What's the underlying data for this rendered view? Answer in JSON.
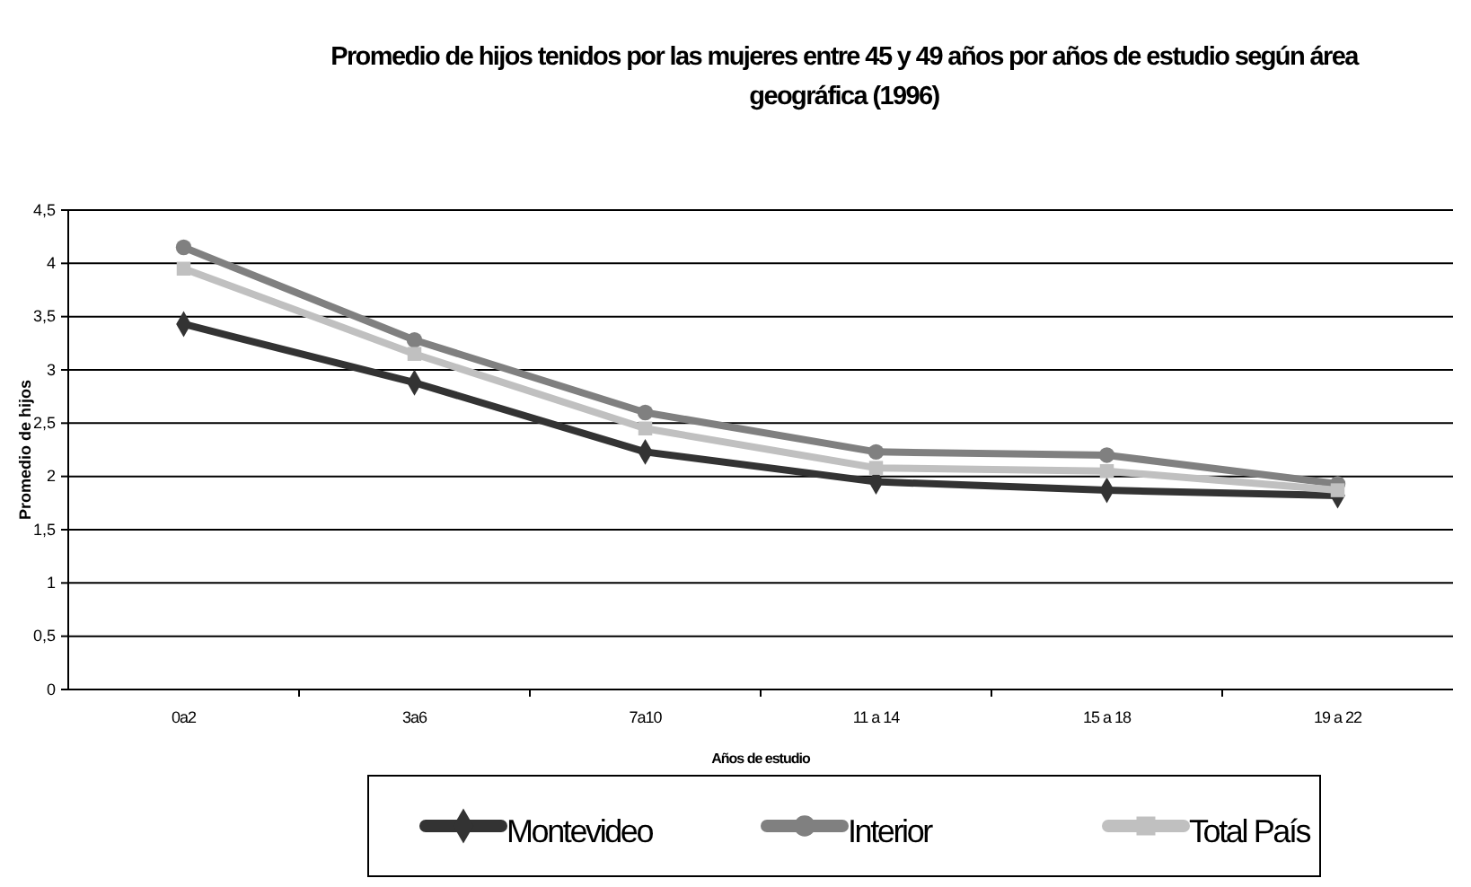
{
  "chart_data": {
    "type": "line",
    "title": "Promedio de hijos tenidos por las mujeres entre 45 y 49 años por años de estudio según área geográfica (1996)",
    "xlabel": "Años de estudio",
    "ylabel": "Promedio de hijos",
    "categories": [
      "0a2",
      "3a6",
      "7a10",
      "11 a 14",
      "15 a 18",
      "19 a 22"
    ],
    "series": [
      {
        "name": "Montevideo",
        "color": "#333333",
        "marker": "diamond",
        "values": [
          3.43,
          2.88,
          2.23,
          1.95,
          1.87,
          1.82
        ]
      },
      {
        "name": "Interior",
        "color": "#808080",
        "marker": "circle",
        "values": [
          4.15,
          3.28,
          2.6,
          2.23,
          2.2,
          1.93
        ]
      },
      {
        "name": "Total País",
        "color": "#c0c0c0",
        "marker": "square",
        "values": [
          3.95,
          3.15,
          2.45,
          2.08,
          2.05,
          1.87
        ]
      }
    ],
    "ylim": [
      0,
      4.5
    ],
    "yticks": [
      {
        "value": 0,
        "label": "0"
      },
      {
        "value": 0.5,
        "label": "0,5"
      },
      {
        "value": 1,
        "label": "1"
      },
      {
        "value": 1.5,
        "label": "1,5"
      },
      {
        "value": 2,
        "label": "2"
      },
      {
        "value": 2.5,
        "label": "2,5"
      },
      {
        "value": 3,
        "label": "3"
      },
      {
        "value": 3.5,
        "label": "3,5"
      },
      {
        "value": 4,
        "label": "4"
      },
      {
        "value": 4.5,
        "label": "4,5"
      }
    ],
    "grid": "y",
    "legend": "bottom",
    "line_style": "solid"
  }
}
